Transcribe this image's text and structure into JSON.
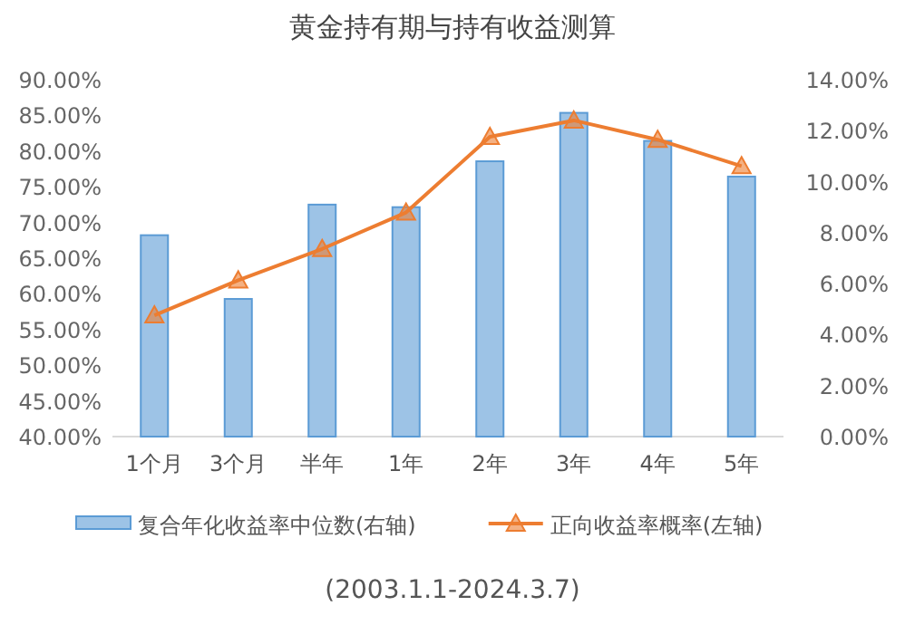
{
  "chart_data": {
    "type": "bar",
    "title": "黄金持有期与持有收益测算",
    "categories": [
      "1个月",
      "3个月",
      "半年",
      "1年",
      "2年",
      "3年",
      "4年",
      "5年"
    ],
    "series": [
      {
        "name": "复合年化收益率中位数(右轴)",
        "axis": "y2",
        "color": "#9dc3e6",
        "values": [
          7.9,
          5.4,
          9.1,
          9.0,
          10.8,
          12.7,
          11.6,
          10.2
        ]
      },
      {
        "name": "正向收益率概率(左轴)",
        "type": "line",
        "axis": "y",
        "color": "#ed7d31",
        "marker": "triangle",
        "values": [
          57.0,
          61.9,
          66.3,
          71.4,
          82.0,
          84.3,
          81.6,
          77.9
        ]
      }
    ],
    "ylim": [
      40,
      90
    ],
    "yticks": [
      {
        "value": 40,
        "label": "40.00%"
      },
      {
        "value": 45,
        "label": "45.00%"
      },
      {
        "value": 50,
        "label": "50.00%"
      },
      {
        "value": 55,
        "label": "55.00%"
      },
      {
        "value": 60,
        "label": "60.00%"
      },
      {
        "value": 65,
        "label": "65.00%"
      },
      {
        "value": 70,
        "label": "70.00%"
      },
      {
        "value": 75,
        "label": "75.00%"
      },
      {
        "value": 80,
        "label": "80.00%"
      },
      {
        "value": 85,
        "label": "85.00%"
      },
      {
        "value": 90,
        "label": "90.00%"
      }
    ],
    "y2lim": [
      0,
      14
    ],
    "y2ticks": [
      {
        "value": 0,
        "label": "0.00%"
      },
      {
        "value": 2,
        "label": "2.00%"
      },
      {
        "value": 4,
        "label": "4.00%"
      },
      {
        "value": 6,
        "label": "6.00%"
      },
      {
        "value": 8,
        "label": "8.00%"
      },
      {
        "value": 10,
        "label": "10.00%"
      },
      {
        "value": 12,
        "label": "12.00%"
      },
      {
        "value": 14,
        "label": "14.00%"
      }
    ],
    "legend": "bottom",
    "grid": false,
    "annotations": [
      "(2003.1.1-2024.3.7)"
    ]
  }
}
